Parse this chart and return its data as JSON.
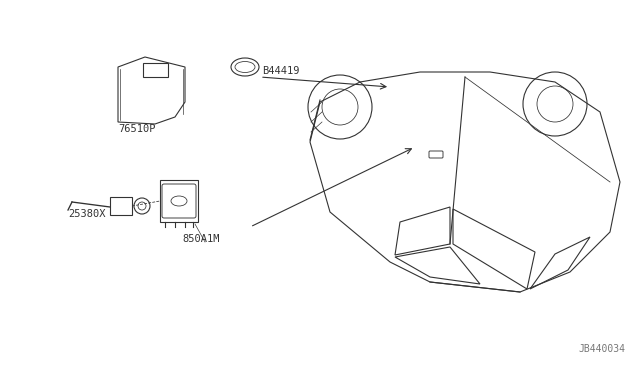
{
  "bg_color": "#ffffff",
  "line_color": "#333333",
  "text_color": "#333333",
  "diagram_id": "JB440034",
  "labels": {
    "part1": "25380X",
    "part2": "850A1M",
    "part3": "76510P",
    "part4": "B44419"
  },
  "figsize": [
    6.4,
    3.72
  ],
  "dpi": 100
}
